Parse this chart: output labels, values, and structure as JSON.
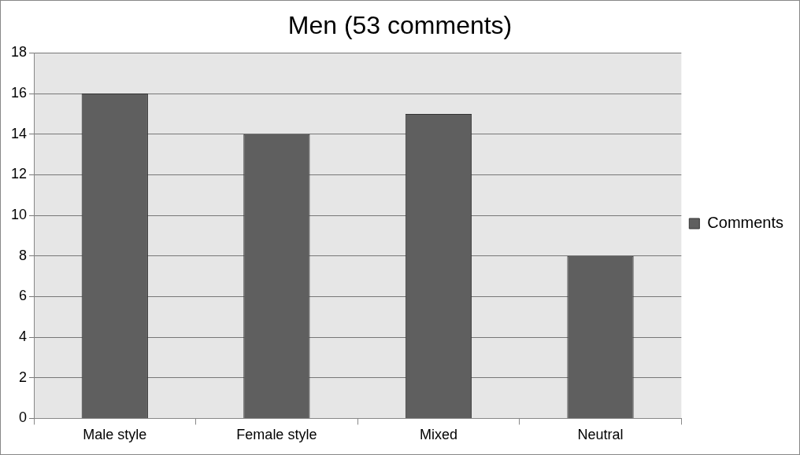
{
  "chart_data": {
    "type": "bar",
    "title": "Men (53 comments)",
    "categories": [
      "Male style",
      "Female style",
      "Mixed",
      "Neutral"
    ],
    "series": [
      {
        "name": "Comments",
        "color": "#5f5f5f",
        "values": [
          16,
          14,
          15,
          8
        ]
      }
    ],
    "ylim": [
      0,
      18
    ],
    "yticks": [
      0,
      2,
      4,
      6,
      8,
      10,
      12,
      14,
      16,
      18
    ],
    "grid": "y",
    "legend": "right"
  }
}
